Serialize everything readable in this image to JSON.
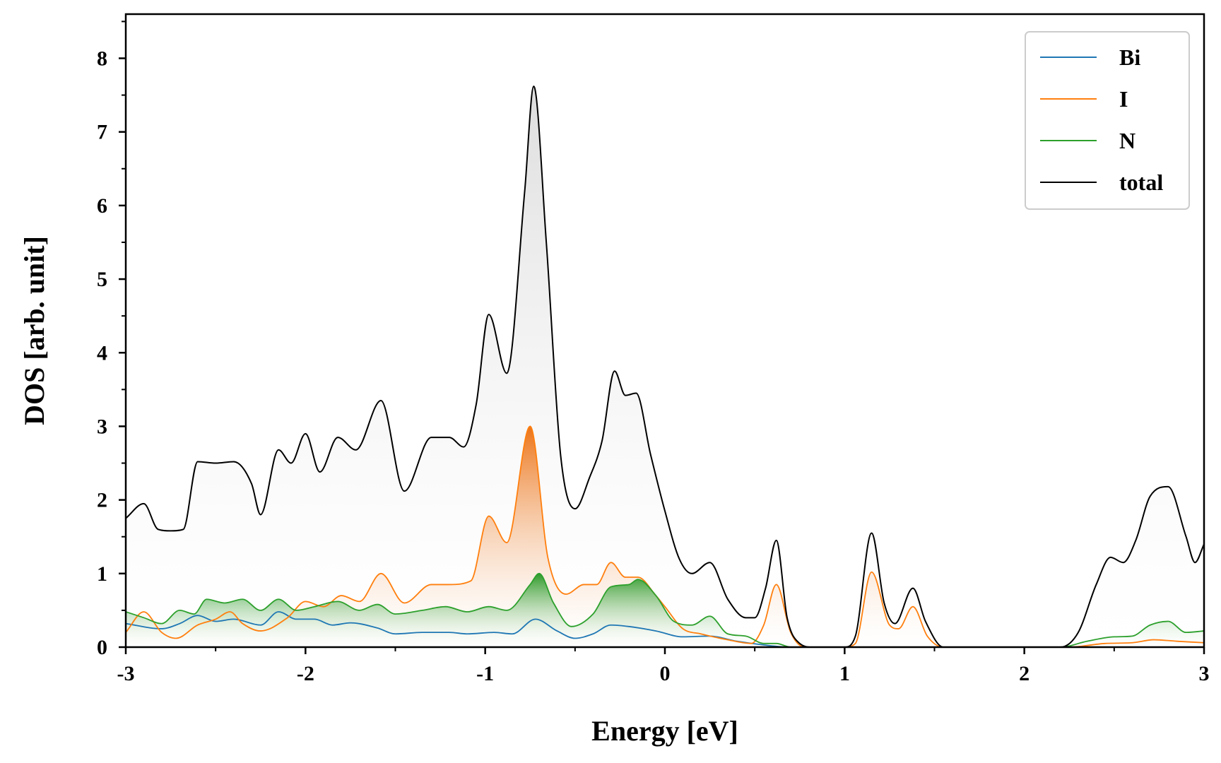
{
  "chart_data": {
    "type": "area",
    "title": "",
    "xlabel": "Energy [eV]",
    "ylabel": "DOS [arb. unit]",
    "xlim": [
      -3,
      3
    ],
    "ylim": [
      0,
      8.6
    ],
    "xticks": [
      -3,
      -2,
      -1,
      0,
      1,
      2,
      3
    ],
    "xtick_labels": [
      "-3",
      "-2",
      "-1",
      "0",
      "1",
      "2",
      "3"
    ],
    "yticks": [
      0,
      1,
      2,
      3,
      4,
      5,
      6,
      7,
      8
    ],
    "ytick_labels": [
      "0",
      "1",
      "2",
      "3",
      "4",
      "5",
      "6",
      "7",
      "8"
    ],
    "legend_position": "top-right",
    "series": [
      {
        "name": "Bi",
        "color": "#1f77b4",
        "filled": false,
        "points": [
          [
            -3.0,
            0.32
          ],
          [
            -2.8,
            0.25
          ],
          [
            -2.7,
            0.32
          ],
          [
            -2.6,
            0.43
          ],
          [
            -2.5,
            0.35
          ],
          [
            -2.4,
            0.38
          ],
          [
            -2.25,
            0.3
          ],
          [
            -2.15,
            0.48
          ],
          [
            -2.05,
            0.38
          ],
          [
            -1.95,
            0.38
          ],
          [
            -1.85,
            0.3
          ],
          [
            -1.75,
            0.33
          ],
          [
            -1.6,
            0.26
          ],
          [
            -1.5,
            0.18
          ],
          [
            -1.35,
            0.2
          ],
          [
            -1.2,
            0.2
          ],
          [
            -1.1,
            0.18
          ],
          [
            -0.95,
            0.2
          ],
          [
            -0.85,
            0.18
          ],
          [
            -0.72,
            0.38
          ],
          [
            -0.6,
            0.22
          ],
          [
            -0.5,
            0.12
          ],
          [
            -0.4,
            0.18
          ],
          [
            -0.3,
            0.3
          ],
          [
            -0.2,
            0.28
          ],
          [
            -0.05,
            0.22
          ],
          [
            0.1,
            0.14
          ],
          [
            0.25,
            0.15
          ],
          [
            0.4,
            0.08
          ],
          [
            0.55,
            0.03
          ],
          [
            0.7,
            0.0
          ],
          [
            3.0,
            0.0
          ]
        ]
      },
      {
        "name": "I",
        "color": "#ff7f0e",
        "filled": true,
        "points": [
          [
            -3.0,
            0.2
          ],
          [
            -2.9,
            0.48
          ],
          [
            -2.8,
            0.2
          ],
          [
            -2.72,
            0.12
          ],
          [
            -2.6,
            0.3
          ],
          [
            -2.5,
            0.38
          ],
          [
            -2.42,
            0.48
          ],
          [
            -2.35,
            0.32
          ],
          [
            -2.25,
            0.22
          ],
          [
            -2.1,
            0.4
          ],
          [
            -2.0,
            0.62
          ],
          [
            -1.9,
            0.55
          ],
          [
            -1.8,
            0.7
          ],
          [
            -1.7,
            0.62
          ],
          [
            -1.58,
            1.0
          ],
          [
            -1.45,
            0.6
          ],
          [
            -1.3,
            0.85
          ],
          [
            -1.2,
            0.85
          ],
          [
            -1.08,
            0.9
          ],
          [
            -0.98,
            1.78
          ],
          [
            -0.88,
            1.42
          ],
          [
            -0.75,
            3.0
          ],
          [
            -0.65,
            1.2
          ],
          [
            -0.55,
            0.72
          ],
          [
            -0.45,
            0.85
          ],
          [
            -0.38,
            0.85
          ],
          [
            -0.3,
            1.15
          ],
          [
            -0.22,
            0.95
          ],
          [
            -0.15,
            0.95
          ],
          [
            -0.05,
            0.7
          ],
          [
            0.0,
            0.55
          ],
          [
            0.1,
            0.25
          ],
          [
            0.2,
            0.18
          ],
          [
            0.35,
            0.1
          ],
          [
            0.48,
            0.05
          ],
          [
            0.55,
            0.3
          ],
          [
            0.62,
            0.85
          ],
          [
            0.7,
            0.2
          ],
          [
            0.78,
            0.0
          ],
          [
            1.0,
            0.0
          ],
          [
            1.06,
            0.05
          ],
          [
            1.15,
            1.02
          ],
          [
            1.25,
            0.3
          ],
          [
            1.3,
            0.25
          ],
          [
            1.38,
            0.55
          ],
          [
            1.46,
            0.15
          ],
          [
            1.55,
            0.0
          ],
          [
            2.25,
            0.0
          ],
          [
            2.45,
            0.05
          ],
          [
            2.6,
            0.06
          ],
          [
            2.72,
            0.1
          ],
          [
            2.85,
            0.08
          ],
          [
            3.0,
            0.06
          ]
        ]
      },
      {
        "name": "N",
        "color": "#2ca02c",
        "filled": true,
        "points": [
          [
            -3.0,
            0.48
          ],
          [
            -2.9,
            0.4
          ],
          [
            -2.8,
            0.32
          ],
          [
            -2.7,
            0.5
          ],
          [
            -2.62,
            0.45
          ],
          [
            -2.55,
            0.65
          ],
          [
            -2.45,
            0.6
          ],
          [
            -2.35,
            0.65
          ],
          [
            -2.25,
            0.5
          ],
          [
            -2.15,
            0.65
          ],
          [
            -2.05,
            0.5
          ],
          [
            -1.95,
            0.55
          ],
          [
            -1.82,
            0.62
          ],
          [
            -1.7,
            0.5
          ],
          [
            -1.6,
            0.58
          ],
          [
            -1.5,
            0.45
          ],
          [
            -1.35,
            0.5
          ],
          [
            -1.22,
            0.55
          ],
          [
            -1.1,
            0.48
          ],
          [
            -0.98,
            0.55
          ],
          [
            -0.88,
            0.5
          ],
          [
            -0.75,
            0.85
          ],
          [
            -0.7,
            1.0
          ],
          [
            -0.62,
            0.6
          ],
          [
            -0.52,
            0.28
          ],
          [
            -0.4,
            0.45
          ],
          [
            -0.3,
            0.82
          ],
          [
            -0.2,
            0.85
          ],
          [
            -0.15,
            0.92
          ],
          [
            -0.05,
            0.7
          ],
          [
            0.05,
            0.35
          ],
          [
            0.15,
            0.3
          ],
          [
            0.25,
            0.42
          ],
          [
            0.35,
            0.18
          ],
          [
            0.45,
            0.15
          ],
          [
            0.55,
            0.05
          ],
          [
            0.62,
            0.05
          ],
          [
            0.7,
            0.0
          ],
          [
            2.2,
            0.0
          ],
          [
            2.35,
            0.08
          ],
          [
            2.5,
            0.14
          ],
          [
            2.6,
            0.15
          ],
          [
            2.7,
            0.3
          ],
          [
            2.8,
            0.35
          ],
          [
            2.9,
            0.2
          ],
          [
            3.0,
            0.22
          ]
        ]
      },
      {
        "name": "total",
        "color": "#000000",
        "filled": true,
        "points": [
          [
            -3.0,
            1.75
          ],
          [
            -2.9,
            1.95
          ],
          [
            -2.82,
            1.6
          ],
          [
            -2.75,
            1.58
          ],
          [
            -2.68,
            1.6
          ],
          [
            -2.6,
            2.52
          ],
          [
            -2.5,
            2.5
          ],
          [
            -2.4,
            2.52
          ],
          [
            -2.3,
            2.22
          ],
          [
            -2.25,
            1.8
          ],
          [
            -2.15,
            2.68
          ],
          [
            -2.08,
            2.5
          ],
          [
            -2.0,
            2.9
          ],
          [
            -1.92,
            2.38
          ],
          [
            -1.82,
            2.85
          ],
          [
            -1.72,
            2.68
          ],
          [
            -1.58,
            3.35
          ],
          [
            -1.45,
            2.12
          ],
          [
            -1.3,
            2.85
          ],
          [
            -1.2,
            2.85
          ],
          [
            -1.12,
            2.72
          ],
          [
            -1.05,
            3.3
          ],
          [
            -0.98,
            4.52
          ],
          [
            -0.88,
            3.72
          ],
          [
            -0.78,
            6.2
          ],
          [
            -0.73,
            7.62
          ],
          [
            -0.66,
            5.5
          ],
          [
            -0.58,
            2.6
          ],
          [
            -0.5,
            1.88
          ],
          [
            -0.42,
            2.3
          ],
          [
            -0.35,
            2.8
          ],
          [
            -0.28,
            3.75
          ],
          [
            -0.22,
            3.42
          ],
          [
            -0.16,
            3.45
          ],
          [
            -0.08,
            2.62
          ],
          [
            0.0,
            1.85
          ],
          [
            0.08,
            1.2
          ],
          [
            0.15,
            1.0
          ],
          [
            0.25,
            1.15
          ],
          [
            0.35,
            0.65
          ],
          [
            0.45,
            0.4
          ],
          [
            0.5,
            0.4
          ],
          [
            0.56,
            0.8
          ],
          [
            0.62,
            1.45
          ],
          [
            0.68,
            0.4
          ],
          [
            0.75,
            0.05
          ],
          [
            0.82,
            0.0
          ],
          [
            1.0,
            0.0
          ],
          [
            1.06,
            0.15
          ],
          [
            1.15,
            1.55
          ],
          [
            1.22,
            0.6
          ],
          [
            1.28,
            0.32
          ],
          [
            1.38,
            0.8
          ],
          [
            1.45,
            0.35
          ],
          [
            1.55,
            0.0
          ],
          [
            2.2,
            0.0
          ],
          [
            2.3,
            0.2
          ],
          [
            2.4,
            0.85
          ],
          [
            2.48,
            1.22
          ],
          [
            2.55,
            1.15
          ],
          [
            2.62,
            1.45
          ],
          [
            2.7,
            2.05
          ],
          [
            2.8,
            2.18
          ],
          [
            2.9,
            1.5
          ],
          [
            2.95,
            1.15
          ],
          [
            3.0,
            1.4
          ]
        ]
      }
    ]
  }
}
